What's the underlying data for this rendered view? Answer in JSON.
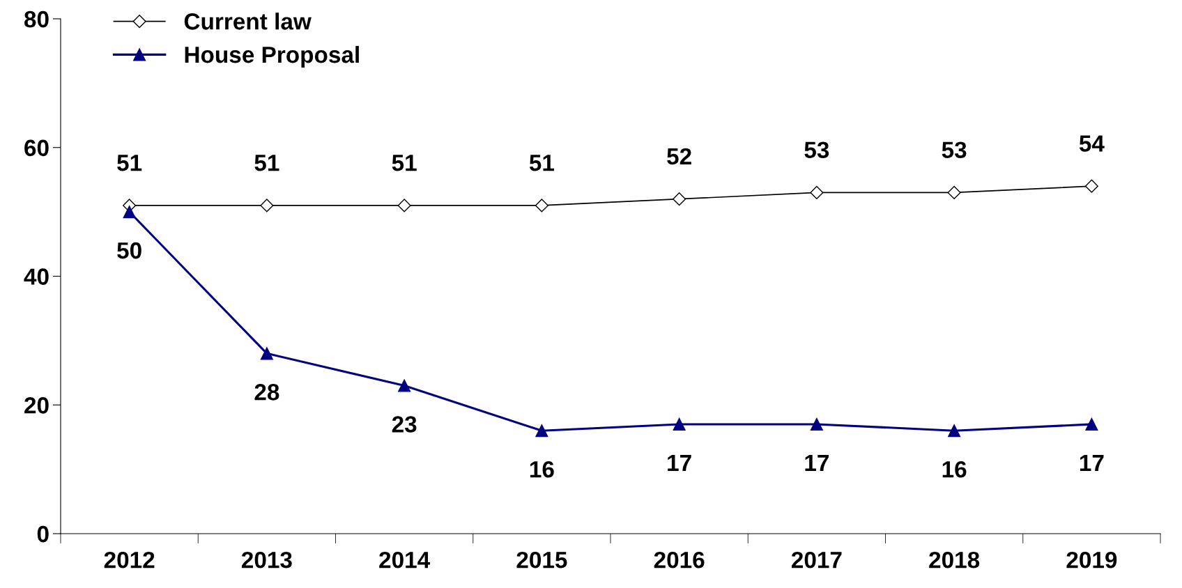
{
  "chart_data": {
    "type": "line",
    "categories": [
      "2012",
      "2013",
      "2014",
      "2015",
      "2016",
      "2017",
      "2018",
      "2019"
    ],
    "series": [
      {
        "name": "Current law",
        "color": "#000000",
        "marker": "diamond",
        "values": [
          51,
          51,
          51,
          51,
          52,
          53,
          53,
          54
        ]
      },
      {
        "name": "House Proposal",
        "color": "#000080",
        "marker": "triangle",
        "values": [
          50,
          28,
          23,
          16,
          17,
          17,
          16,
          17
        ]
      }
    ],
    "ylim": [
      0,
      80
    ],
    "yticks": [
      0,
      20,
      40,
      60,
      80
    ],
    "grid": false,
    "legend": "top left",
    "data_labels": true,
    "line_style": "solid"
  }
}
